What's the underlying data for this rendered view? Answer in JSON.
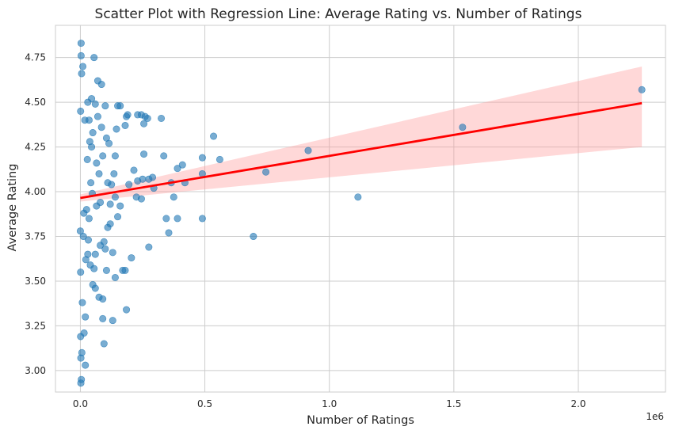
{
  "chart_data": {
    "type": "scatter",
    "title": "Scatter Plot with Regression Line: Average Rating vs. Number of Ratings",
    "xlabel": "Number of Ratings",
    "ylabel": "Average Rating",
    "x_offset_label": "1e6",
    "xlim": [
      -100000,
      2350000
    ],
    "ylim": [
      2.88,
      4.93
    ],
    "x_ticks": [
      0,
      500000,
      1000000,
      1500000,
      2000000
    ],
    "x_tick_labels": [
      "0.0",
      "0.5",
      "1.0",
      "1.5",
      "2.0"
    ],
    "y_ticks": [
      3.0,
      3.25,
      3.5,
      3.75,
      4.0,
      4.25,
      4.5,
      4.75
    ],
    "y_tick_labels": [
      "3.00",
      "3.25",
      "3.50",
      "3.75",
      "4.00",
      "4.25",
      "4.50",
      "4.75"
    ],
    "grid": true,
    "colors": {
      "points": "#1f77b4",
      "regression_line": "#ff0000",
      "confidence_band": "#ff9999"
    },
    "regression": {
      "x_range": [
        0,
        2255000
      ],
      "line_y": [
        3.965,
        4.495
      ],
      "band_lower": [
        3.945,
        4.25
      ],
      "band_upper": [
        3.985,
        4.7
      ]
    },
    "points": [
      [
        2255000,
        4.57
      ],
      [
        1535000,
        4.36
      ],
      [
        915000,
        4.23
      ],
      [
        1115000,
        3.97
      ],
      [
        745000,
        4.11
      ],
      [
        695000,
        3.75
      ],
      [
        560000,
        4.18
      ],
      [
        535000,
        4.31
      ],
      [
        490000,
        4.19
      ],
      [
        490000,
        4.1
      ],
      [
        490000,
        3.85
      ],
      [
        420000,
        4.05
      ],
      [
        410000,
        4.15
      ],
      [
        390000,
        4.13
      ],
      [
        390000,
        3.85
      ],
      [
        375000,
        3.97
      ],
      [
        365000,
        4.05
      ],
      [
        355000,
        3.77
      ],
      [
        345000,
        3.85
      ],
      [
        335000,
        4.2
      ],
      [
        325000,
        4.41
      ],
      [
        295000,
        4.02
      ],
      [
        290000,
        4.08
      ],
      [
        275000,
        4.07
      ],
      [
        275000,
        3.69
      ],
      [
        270000,
        4.41
      ],
      [
        260000,
        4.42
      ],
      [
        255000,
        4.21
      ],
      [
        255000,
        4.38
      ],
      [
        250000,
        4.07
      ],
      [
        245000,
        4.43
      ],
      [
        245000,
        3.96
      ],
      [
        230000,
        4.43
      ],
      [
        230000,
        4.06
      ],
      [
        225000,
        3.97
      ],
      [
        215000,
        4.12
      ],
      [
        205000,
        3.63
      ],
      [
        195000,
        4.04
      ],
      [
        190000,
        4.43
      ],
      [
        185000,
        4.42
      ],
      [
        180000,
        4.37
      ],
      [
        180000,
        3.56
      ],
      [
        170000,
        3.56
      ],
      [
        185000,
        3.34
      ],
      [
        160000,
        4.48
      ],
      [
        150000,
        4.48
      ],
      [
        150000,
        3.86
      ],
      [
        145000,
        4.35
      ],
      [
        140000,
        4.2
      ],
      [
        140000,
        3.97
      ],
      [
        135000,
        4.1
      ],
      [
        130000,
        3.66
      ],
      [
        130000,
        3.28
      ],
      [
        125000,
        4.04
      ],
      [
        120000,
        3.93
      ],
      [
        115000,
        4.27
      ],
      [
        110000,
        3.8
      ],
      [
        105000,
        3.56
      ],
      [
        100000,
        4.48
      ],
      [
        95000,
        3.15
      ],
      [
        90000,
        3.29
      ],
      [
        90000,
        3.4
      ],
      [
        85000,
        4.6
      ],
      [
        70000,
        4.62
      ],
      [
        55000,
        4.75
      ],
      [
        60000,
        4.49
      ],
      [
        75000,
        4.1
      ],
      [
        80000,
        3.7
      ],
      [
        65000,
        3.92
      ],
      [
        50000,
        3.48
      ],
      [
        45000,
        4.52
      ],
      [
        40000,
        3.59
      ],
      [
        35000,
        4.4
      ],
      [
        30000,
        3.65
      ],
      [
        25000,
        3.9
      ],
      [
        20000,
        3.3
      ],
      [
        20000,
        3.03
      ],
      [
        15000,
        3.21
      ],
      [
        12000,
        3.75
      ],
      [
        10000,
        4.7
      ],
      [
        8000,
        3.38
      ],
      [
        6000,
        3.1
      ],
      [
        5000,
        4.66
      ],
      [
        4000,
        2.95
      ],
      [
        3000,
        4.83
      ],
      [
        3000,
        4.76
      ],
      [
        2000,
        3.07
      ],
      [
        2000,
        2.93
      ],
      [
        1000,
        3.19
      ],
      [
        1000,
        3.55
      ],
      [
        1000,
        4.45
      ],
      [
        0,
        3.78
      ],
      [
        30000,
        4.5
      ],
      [
        35000,
        3.85
      ],
      [
        45000,
        4.25
      ],
      [
        60000,
        3.65
      ],
      [
        70000,
        4.42
      ],
      [
        80000,
        3.94
      ],
      [
        90000,
        4.2
      ],
      [
        95000,
        3.72
      ],
      [
        110000,
        4.05
      ],
      [
        120000,
        3.82
      ],
      [
        140000,
        3.52
      ],
      [
        160000,
        3.92
      ],
      [
        60000,
        3.46
      ],
      [
        75000,
        3.41
      ],
      [
        50000,
        4.33
      ],
      [
        42000,
        4.05
      ],
      [
        28000,
        4.18
      ],
      [
        22000,
        3.62
      ],
      [
        18000,
        4.4
      ],
      [
        14000,
        3.88
      ],
      [
        100000,
        3.68
      ],
      [
        105000,
        4.3
      ],
      [
        85000,
        4.36
      ],
      [
        65000,
        4.16
      ],
      [
        55000,
        3.57
      ],
      [
        48000,
        3.99
      ],
      [
        38000,
        4.28
      ],
      [
        32000,
        3.73
      ]
    ]
  }
}
